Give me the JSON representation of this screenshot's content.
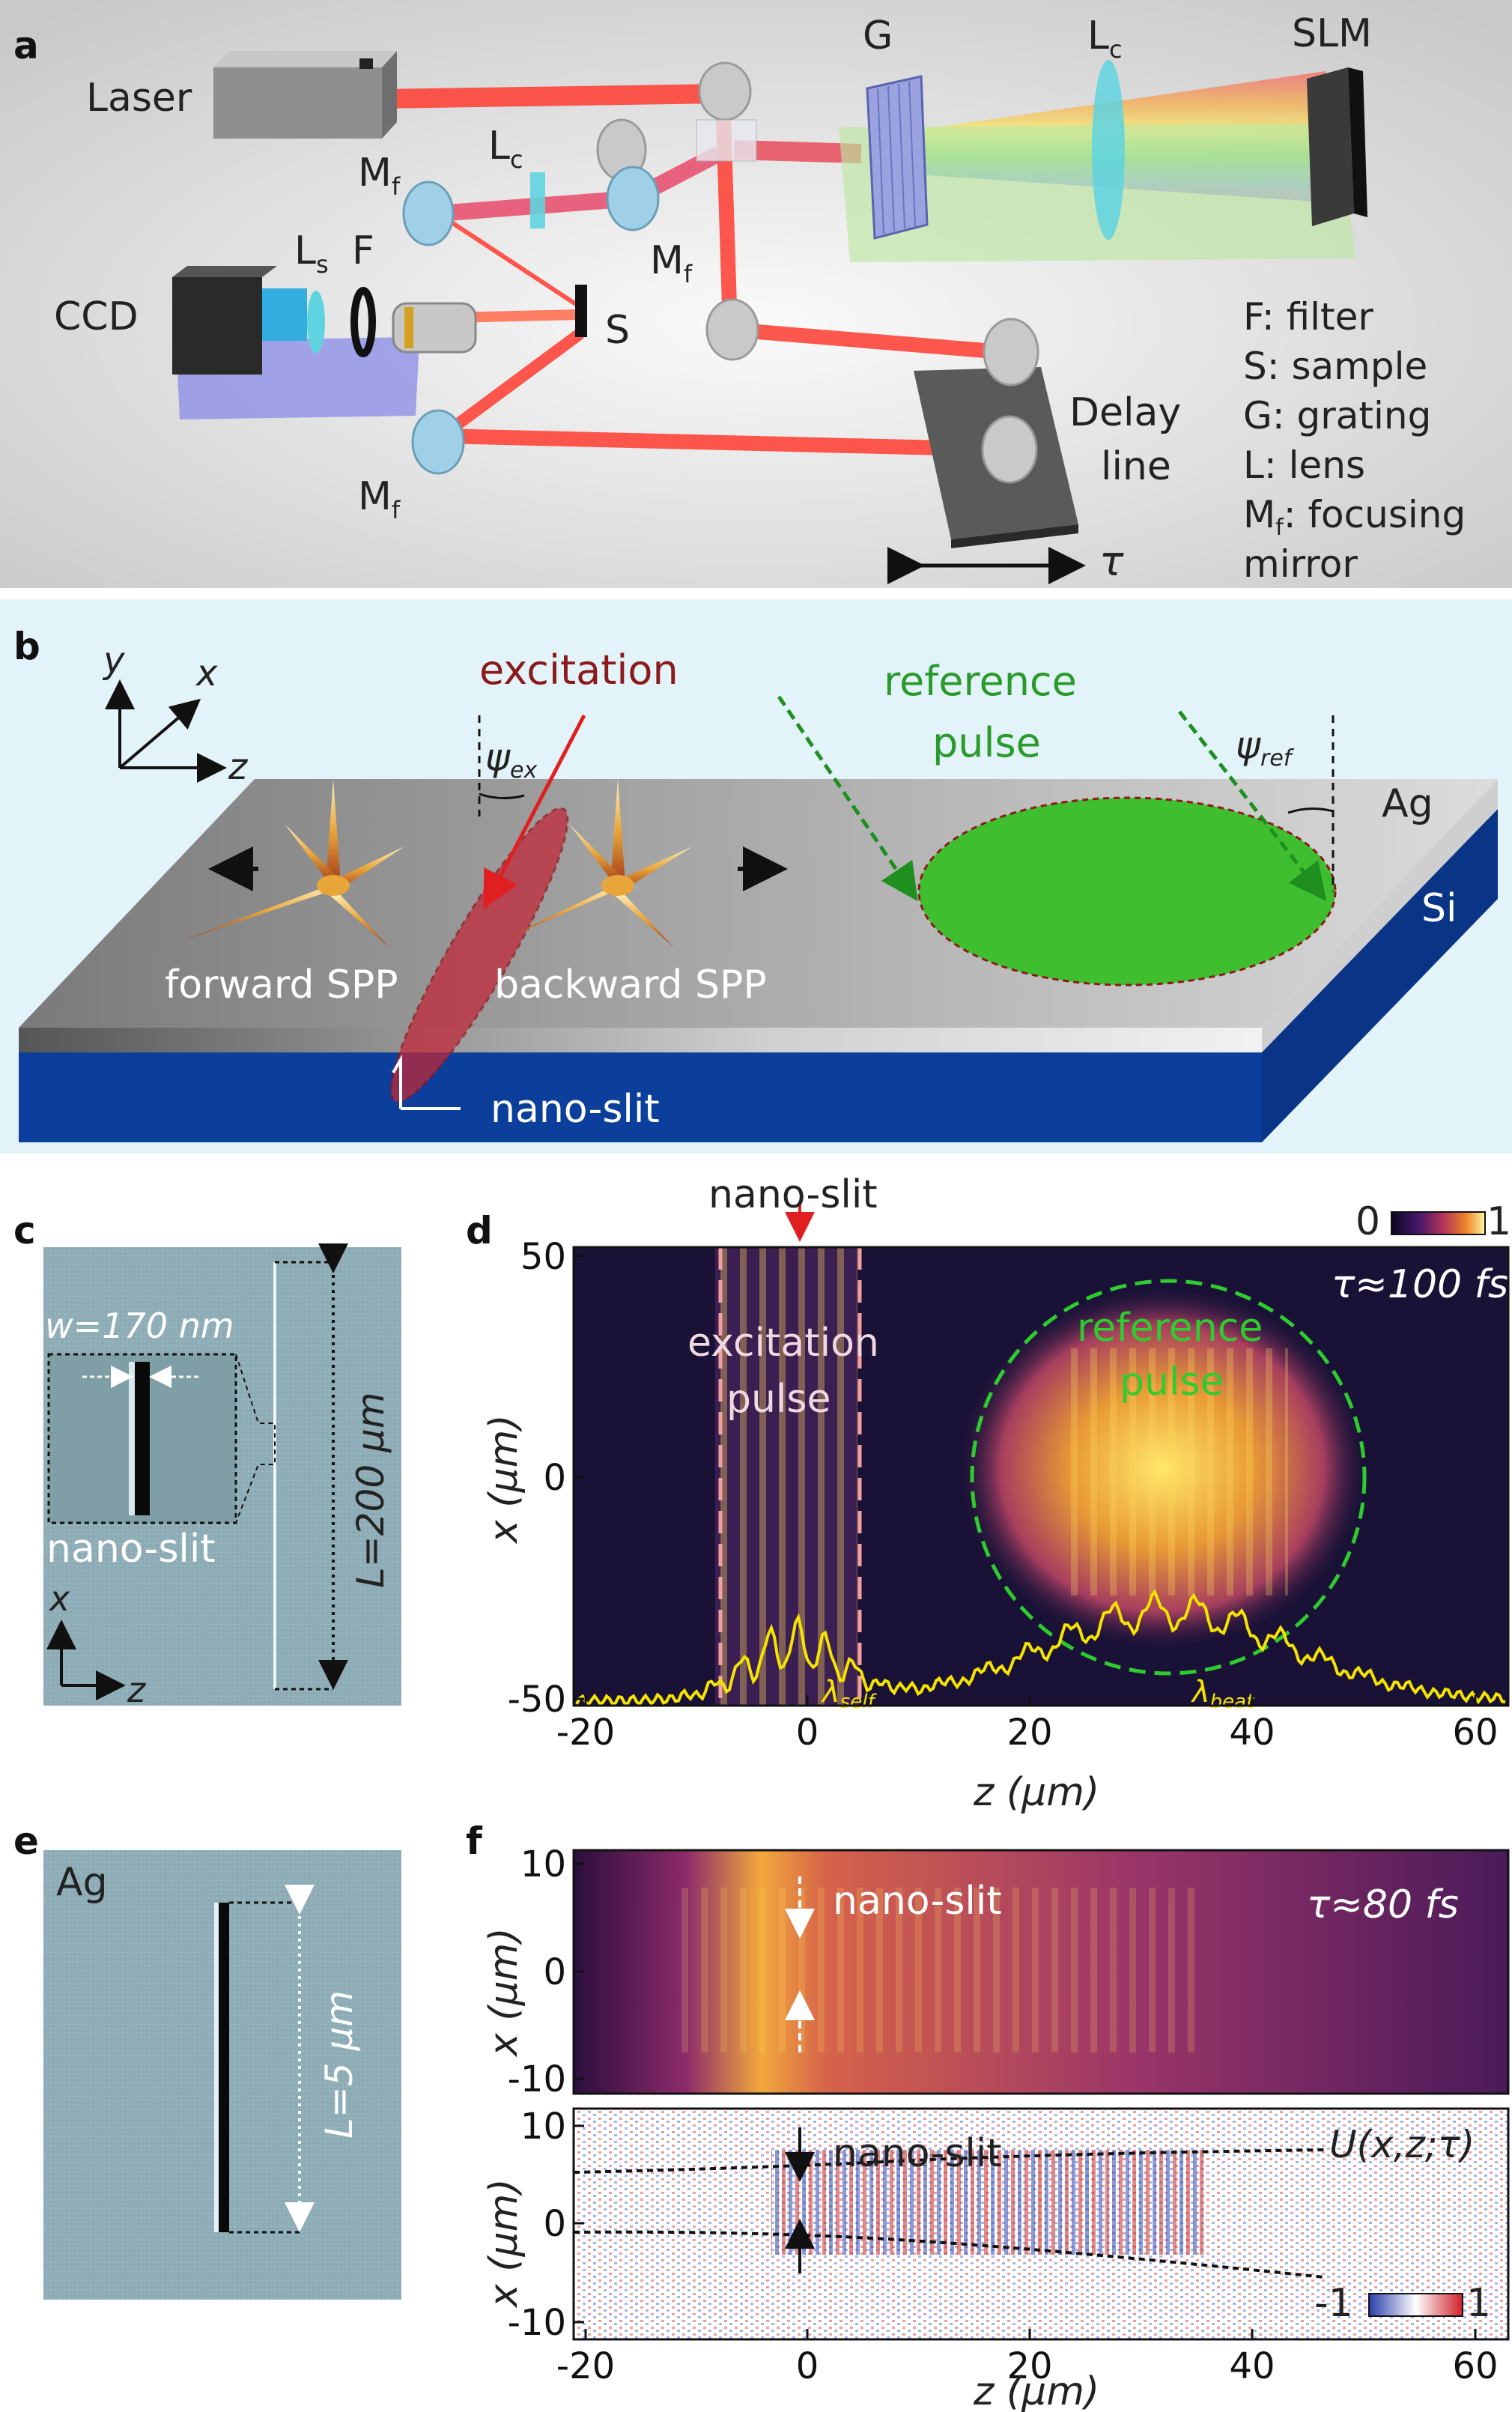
{
  "panels": {
    "a": {
      "letter": "a",
      "labels": {
        "laser": "Laser",
        "g": "G",
        "lc_top": "L",
        "lc_top_sub": "c",
        "slm": "SLM",
        "lc_mid": "L",
        "lc_mid_sub": "c",
        "mf_top": "M",
        "mf_top_sub": "f",
        "mf_mid": "M",
        "mf_mid_sub": "f",
        "mf_bottom": "M",
        "mf_bottom_sub": "f",
        "ccd": "CCD",
        "ls": "L",
        "ls_sub": "s",
        "f": "F",
        "s": "S",
        "delay_line_1": "Delay",
        "delay_line_2": "line",
        "tau": "τ"
      },
      "legend": [
        "F: filter",
        "S: sample",
        "G: grating",
        "L: lens",
        "M",
        "f",
        ": focusing",
        "mirror"
      ]
    },
    "b": {
      "letter": "b",
      "axes": {
        "y": "y",
        "x": "x",
        "z": "z"
      },
      "excitation": "excitation",
      "psi_ex": "ψ",
      "psi_ex_sub": "ex",
      "reference_1": "reference",
      "reference_2": "pulse",
      "psi_ref": "ψ",
      "psi_ref_sub": "ref",
      "ag": "Ag",
      "si": "Si",
      "forward_spp": "forward SPP",
      "backward_spp": "backward SPP",
      "nano_slit": "nano-slit"
    },
    "c": {
      "letter": "c",
      "width_label": "w=170 nm",
      "length_label": "L=200 μm",
      "nano_slit": "nano-slit",
      "axis_x": "x",
      "axis_z": "z"
    },
    "d": {
      "letter": "d",
      "nano_slit": "nano-slit",
      "colorbar_min": "0",
      "colorbar_max": "1",
      "tau": "τ≈100 fs",
      "excitation_1": "excitation",
      "excitation_2": "pulse",
      "reference_1": "reference",
      "reference_2": "pulse",
      "lambda_self": "λ",
      "lambda_self_sub": "self",
      "lambda_beat": "λ",
      "lambda_beat_sub": "beat",
      "ylabel": "x (μm)",
      "xlabel": "z (μm)",
      "yticks": [
        "50",
        "0",
        "-50"
      ],
      "xticks": [
        "-20",
        "0",
        "20",
        "40",
        "60"
      ]
    },
    "e": {
      "letter": "e",
      "ag": "Ag",
      "length_label": "L=5 μm"
    },
    "f": {
      "letter": "f",
      "nano_slit_top": "nano-slit",
      "tau": "τ≈80 fs",
      "nano_slit_bottom": "nano-slit",
      "u_label": "U(x,z;τ)",
      "colorbar_min": "-1",
      "colorbar_max": "1",
      "ylabel_top": "x (μm)",
      "ylabel_bottom": "x (μm)",
      "xlabel": "z (μm)",
      "yticks_top": [
        "10",
        "0",
        "-10"
      ],
      "yticks_bottom": [
        "10",
        "0",
        "-10"
      ],
      "xticks": [
        "-20",
        "0",
        "20",
        "40",
        "60"
      ]
    }
  },
  "colors": {
    "beam": "#ff3b2f",
    "ag_surface": "#9a9a9a",
    "si": "#0b3f9b",
    "reference_green": "#3fbf2f",
    "excitation_red": "#8b1a1a",
    "dashed_green": "#1f8f1f",
    "yellow_profile": "#f5e400",
    "panel_b_bg": "#e3f3fa",
    "sem_bg": "#8aa7b0"
  }
}
